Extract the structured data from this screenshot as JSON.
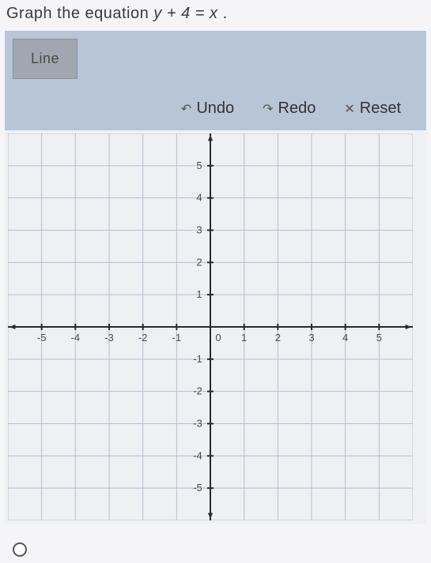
{
  "prompt": {
    "prefix": "Graph the equation ",
    "equation": "y + 4 = x",
    "suffix": " ."
  },
  "tools": {
    "line_label": "Line"
  },
  "actions": {
    "undo": {
      "icon": "↶",
      "label": "Undo"
    },
    "redo": {
      "icon": "↷",
      "label": "Redo"
    },
    "reset": {
      "icon": "✕",
      "label": "Reset"
    }
  },
  "graph": {
    "xlim": [
      -6,
      6
    ],
    "ylim": [
      -6,
      6
    ],
    "x_ticks": [
      -5,
      -4,
      -3,
      -2,
      -1,
      1,
      2,
      3,
      4,
      5
    ],
    "y_ticks_pos": [
      1,
      2,
      3,
      4,
      5
    ],
    "y_ticks_neg": [
      -1,
      -2,
      -3,
      -4,
      -5
    ],
    "origin_label": "0",
    "background_color": "#eef0f4",
    "grid_color": "#b5bfd0",
    "axis_color": "#2a2a2a",
    "label_color": "#4a4a4a",
    "label_fontsize": 13,
    "type": "coordinate-grid"
  }
}
